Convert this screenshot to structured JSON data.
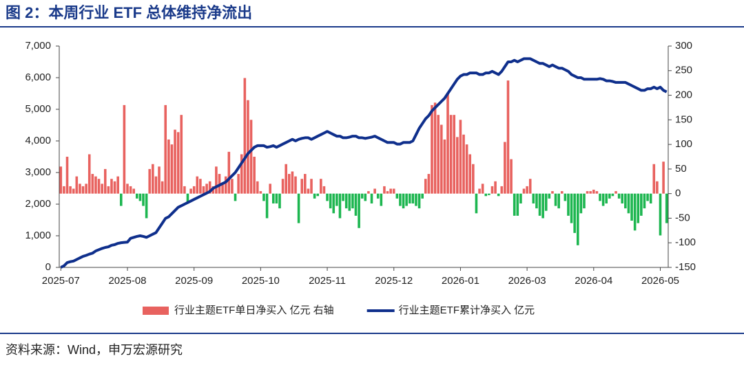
{
  "chart_data": {
    "type": "combo",
    "title": "图 2：本周行业 ETF 总体维持净流出",
    "source": "资料来源：Wind，申万宏源研究",
    "categories": [
      "2025-07",
      null,
      null,
      null,
      null,
      null,
      null,
      null,
      null,
      null,
      null,
      null,
      null,
      null,
      null,
      null,
      null,
      null,
      null,
      null,
      null,
      "2025-08",
      null,
      null,
      null,
      null,
      null,
      null,
      null,
      null,
      null,
      null,
      null,
      null,
      null,
      null,
      null,
      null,
      null,
      null,
      null,
      null,
      "2025-09",
      null,
      null,
      null,
      null,
      null,
      null,
      null,
      null,
      null,
      null,
      null,
      null,
      null,
      null,
      null,
      null,
      null,
      null,
      null,
      null,
      "2025-10",
      null,
      null,
      null,
      null,
      null,
      null,
      null,
      null,
      null,
      null,
      null,
      null,
      null,
      null,
      null,
      null,
      null,
      null,
      null,
      null,
      "2025-11",
      null,
      null,
      null,
      null,
      null,
      null,
      null,
      null,
      null,
      null,
      null,
      null,
      null,
      null,
      null,
      null,
      null,
      null,
      null,
      null,
      "2025-12",
      null,
      null,
      null,
      null,
      null,
      null,
      null,
      null,
      null,
      null,
      null,
      null,
      null,
      null,
      null,
      null,
      null,
      null,
      null,
      null,
      "2026-01",
      null,
      null,
      null,
      null,
      null,
      null,
      null,
      null,
      null,
      null,
      null,
      null,
      null,
      null,
      null,
      null,
      null,
      null,
      null,
      null,
      "2026-03",
      null,
      null,
      null,
      null,
      null,
      null,
      null,
      null,
      null,
      null,
      null,
      null,
      null,
      null,
      null,
      null,
      null,
      null,
      null,
      null,
      "2026-04",
      null,
      null,
      null,
      null,
      null,
      null,
      null,
      null,
      null,
      null,
      null,
      null,
      null,
      null,
      null,
      null,
      null,
      null,
      null,
      null,
      "2026-05",
      null,
      null
    ],
    "series": [
      {
        "name": "行业主题ETF单日净买入 亿元 右轴",
        "type": "bar",
        "axis": "y2",
        "color": "#e8625f",
        "negative_color": "#1db650",
        "values": [
          55,
          15,
          75,
          15,
          10,
          35,
          20,
          15,
          20,
          80,
          40,
          35,
          30,
          20,
          50,
          15,
          30,
          25,
          35,
          -25,
          180,
          20,
          15,
          10,
          -10,
          -15,
          -25,
          -50,
          50,
          60,
          35,
          55,
          25,
          180,
          110,
          100,
          130,
          125,
          160,
          15,
          -20,
          10,
          15,
          35,
          30,
          15,
          20,
          25,
          15,
          55,
          40,
          20,
          35,
          85,
          30,
          -15,
          40,
          80,
          235,
          190,
          150,
          75,
          25,
          5,
          -15,
          -50,
          20,
          -20,
          -20,
          -30,
          30,
          60,
          40,
          45,
          35,
          -60,
          30,
          40,
          10,
          30,
          -10,
          -5,
          30,
          15,
          -15,
          -30,
          -40,
          -25,
          -50,
          -15,
          -30,
          -35,
          -30,
          -45,
          -70,
          -10,
          -15,
          5,
          -20,
          10,
          -10,
          -25,
          15,
          5,
          10,
          10,
          -10,
          -25,
          -30,
          -25,
          -20,
          -20,
          -25,
          -30,
          -10,
          30,
          40,
          180,
          185,
          160,
          140,
          110,
          205,
          160,
          160,
          115,
          150,
          120,
          100,
          80,
          60,
          -40,
          10,
          20,
          -5,
          -3,
          15,
          25,
          -5,
          15,
          105,
          230,
          70,
          -45,
          -45,
          -20,
          10,
          15,
          30,
          -20,
          -30,
          -45,
          -50,
          -35,
          -10,
          5,
          -25,
          -30,
          5,
          -15,
          -45,
          -60,
          -80,
          -105,
          -40,
          -30,
          5,
          5,
          8,
          5,
          -15,
          -25,
          -20,
          -10,
          -5,
          5,
          -10,
          -20,
          -30,
          -40,
          -55,
          -75,
          -60,
          -45,
          -30,
          -15,
          -20,
          60,
          25,
          -85,
          65,
          -60
        ]
      },
      {
        "name": "行业主题ETF累计净买入 亿元",
        "type": "line",
        "axis": "y",
        "color": "#0f2f8c",
        "values": [
          0,
          50,
          150,
          180,
          200,
          250,
          300,
          350,
          380,
          420,
          450,
          520,
          560,
          600,
          630,
          650,
          700,
          720,
          760,
          780,
          790,
          800,
          920,
          950,
          980,
          1000,
          980,
          950,
          1000,
          1050,
          1100,
          1250,
          1400,
          1550,
          1600,
          1700,
          1800,
          1900,
          1950,
          2000,
          2050,
          2100,
          2150,
          2200,
          2250,
          2300,
          2350,
          2400,
          2500,
          2550,
          2600,
          2650,
          2700,
          2800,
          2900,
          3000,
          3150,
          3300,
          3450,
          3600,
          3700,
          3800,
          3850,
          3850,
          3850,
          3800,
          3820,
          3850,
          3800,
          3850,
          3900,
          3950,
          4000,
          4050,
          4000,
          4050,
          4080,
          4100,
          4100,
          4050,
          4100,
          4150,
          4200,
          4250,
          4300,
          4250,
          4200,
          4150,
          4150,
          4100,
          4100,
          4120,
          4150,
          4150,
          4100,
          4100,
          4080,
          4100,
          4120,
          4150,
          4100,
          4050,
          4000,
          3950,
          3950,
          3950,
          3900,
          3900,
          3950,
          3950,
          3950,
          4000,
          4200,
          4400,
          4550,
          4700,
          4800,
          4950,
          5050,
          5150,
          5250,
          5350,
          5500,
          5650,
          5800,
          5950,
          6050,
          6100,
          6100,
          6150,
          6150,
          6150,
          6100,
          6100,
          6150,
          6150,
          6200,
          6150,
          6100,
          6200,
          6350,
          6500,
          6500,
          6550,
          6500,
          6550,
          6600,
          6600,
          6600,
          6550,
          6500,
          6450,
          6450,
          6400,
          6350,
          6400,
          6350,
          6300,
          6300,
          6250,
          6200,
          6100,
          6050,
          6000,
          6000,
          5950,
          5950,
          5950,
          5950,
          5950,
          5970,
          5950,
          5900,
          5900,
          5880,
          5850,
          5850,
          5850,
          5850,
          5800,
          5750,
          5700,
          5650,
          5600,
          5600,
          5650,
          5650,
          5700,
          5650,
          5700,
          5600,
          5550
        ]
      }
    ],
    "ylim": [
      0,
      7000
    ],
    "yticks": [
      0,
      {
        "value": 1000,
        "label": "1,000"
      },
      {
        "value": 2000,
        "label": "2,000"
      },
      {
        "value": 3000,
        "label": "3,000"
      },
      {
        "value": 4000,
        "label": "4,000"
      },
      {
        "value": 5000,
        "label": "5,000"
      },
      {
        "value": 6000,
        "label": "6,000"
      },
      {
        "value": 7000,
        "label": "7,000"
      }
    ],
    "y2lim": [
      -150,
      300
    ],
    "y2ticks": [
      -150,
      -100,
      -50,
      0,
      50,
      100,
      150,
      200,
      250,
      300
    ],
    "grid": false,
    "legend": "bottom"
  }
}
